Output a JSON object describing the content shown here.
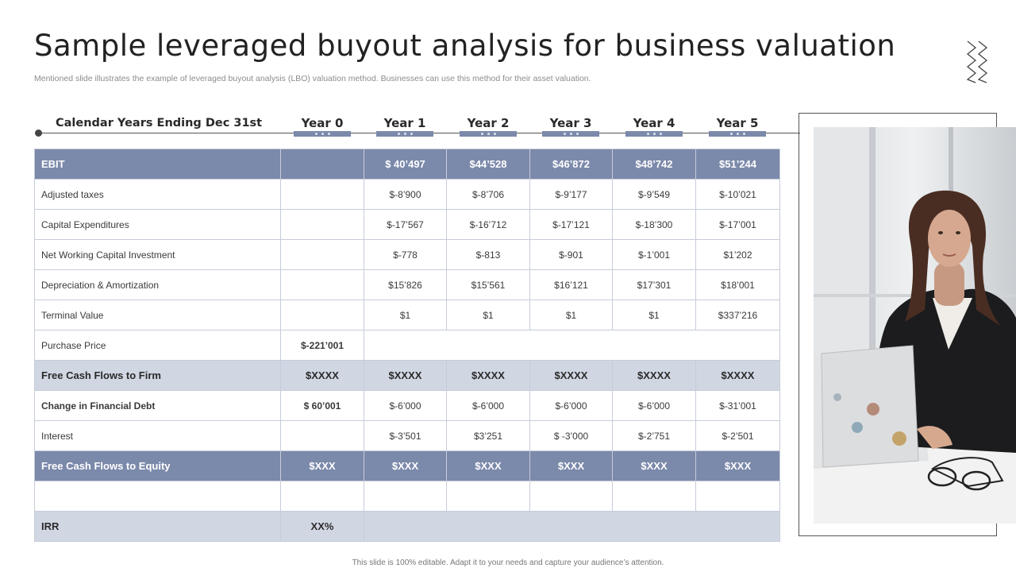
{
  "title": "Sample leveraged buyout analysis for business valuation",
  "subtitle": "Mentioned slide illustrates the example of leveraged buyout analysis (LBO) valuation method. Businesses can use this method for their asset valuation.",
  "years_heading": "Calendar Years Ending  Dec 31st",
  "years": [
    "Year 0",
    "Year 1",
    "Year 2",
    "Year 3",
    "Year 4",
    "Year 5"
  ],
  "rows": {
    "ebit": {
      "label": "EBIT",
      "values": [
        "$ 40’497",
        "$44’528",
        "$46’872",
        "$48’742",
        "$51’244"
      ]
    },
    "taxes": {
      "label": "Adjusted taxes",
      "values": [
        "$-8’900",
        "$-8’706",
        "$-9’177",
        "$-9’549",
        "$-10’021"
      ]
    },
    "capex": {
      "label": "Capital Expenditures",
      "values": [
        "$-17’567",
        "$-16’712",
        "$-17’121",
        "$-18’300",
        "$-17’001"
      ]
    },
    "nwc": {
      "label": "Net Working Capital Investment",
      "values": [
        "$-778",
        "$-813",
        "$-901",
        "$-1’001",
        "$1’202"
      ]
    },
    "dep": {
      "label": "Depreciation & Amortization",
      "values": [
        "$15’826",
        "$15’561",
        "$16’121",
        "$17’301",
        "$18’001"
      ]
    },
    "terminal": {
      "label": "Terminal Value",
      "values": [
        "$1",
        "$1",
        "$1",
        "$1",
        "$337’216"
      ]
    },
    "purchase": {
      "label": "Purchase Price",
      "y0": "$-221’001"
    },
    "fcff": {
      "label": "Free Cash Flows to Firm",
      "y0": "$XXXX",
      "values": [
        "$XXXX",
        "$XXXX",
        "$XXXX",
        "$XXXX",
        "$XXXX"
      ]
    },
    "debt": {
      "label": "Change in Financial  Debt",
      "y0": "$ 60’001",
      "values": [
        "$-6’000",
        "$-6’000",
        "$-6’000",
        "$-6’000",
        "$-31’001"
      ]
    },
    "interest": {
      "label": "Interest",
      "values": [
        "$-3’501",
        "$3’251",
        "$ -3’000",
        "$-2’751",
        "$-2’501"
      ]
    },
    "fcfe": {
      "label": "Free Cash Flows to Equity",
      "y0": "$XXX",
      "values": [
        "$XXX",
        "$XXX",
        "$XXX",
        "$XXX",
        "$XXX"
      ]
    },
    "irr": {
      "label": "IRR",
      "y0": "XX%"
    }
  },
  "footer": "This slide is 100% editable. Adapt it to your needs and capture your audience’s attention.",
  "colors": {
    "header_row": "#7b89aa",
    "highlight_row": "#d1d6e3",
    "accent_text": "#6d7fab"
  }
}
